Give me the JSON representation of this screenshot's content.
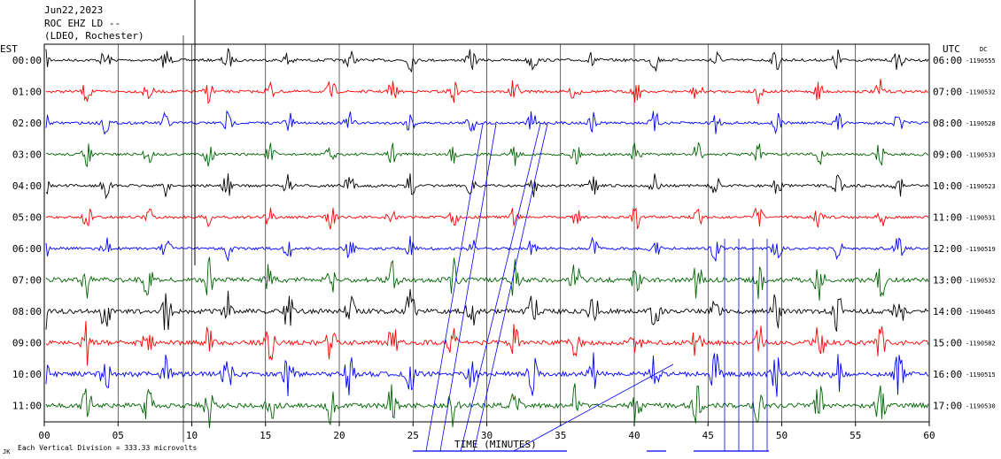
{
  "header": {
    "date": "Jun22,2023",
    "station": "ROC EHZ LD --",
    "network": "(LDEO, Rochester)"
  },
  "left_tz": "EST",
  "right_tz": "UTC",
  "right_tz_sub": "DC",
  "footer": {
    "scale_note": "Each Vertical Division =  333.33 microvolts",
    "corner_mark": "JK"
  },
  "colors": {
    "cycle": [
      "#000000",
      "#ff0000",
      "#0000ff",
      "#006400"
    ],
    "grid": "#000000"
  },
  "chart_data": {
    "type": "line",
    "title": "ROC EHZ LD --",
    "xlabel": "TIME (MINUTES)",
    "ylabel": "",
    "xlim": [
      0,
      60
    ],
    "x_ticks": [
      "00",
      "05",
      "10",
      "15",
      "20",
      "25",
      "30",
      "35",
      "40",
      "45",
      "50",
      "55",
      "60"
    ],
    "rows": [
      {
        "est": "00:00",
        "utc": "06:00",
        "dc": "-1190555",
        "color": "#000000"
      },
      {
        "est": "01:00",
        "utc": "07:00",
        "dc": "-1190532",
        "color": "#ff0000"
      },
      {
        "est": "02:00",
        "utc": "08:00",
        "dc": "-1190528",
        "color": "#0000ff"
      },
      {
        "est": "03:00",
        "utc": "09:00",
        "dc": "-1190533",
        "color": "#006400"
      },
      {
        "est": "04:00",
        "utc": "10:00",
        "dc": "-1190523",
        "color": "#000000"
      },
      {
        "est": "05:00",
        "utc": "11:00",
        "dc": "-1190531",
        "color": "#ff0000"
      },
      {
        "est": "06:00",
        "utc": "12:00",
        "dc": "-1190519",
        "color": "#0000ff"
      },
      {
        "est": "07:00",
        "utc": "13:00",
        "dc": "-1190532",
        "color": "#006400"
      },
      {
        "est": "08:00",
        "utc": "14:00",
        "dc": "-1190465",
        "color": "#000000"
      },
      {
        "est": "09:00",
        "utc": "15:00",
        "dc": "-1190582",
        "color": "#ff0000"
      },
      {
        "est": "10:00",
        "utc": "16:00",
        "dc": "-1190515",
        "color": "#0000ff"
      },
      {
        "est": "11:00",
        "utc": "17:00",
        "dc": "-1190530",
        "color": "#006400"
      }
    ]
  }
}
